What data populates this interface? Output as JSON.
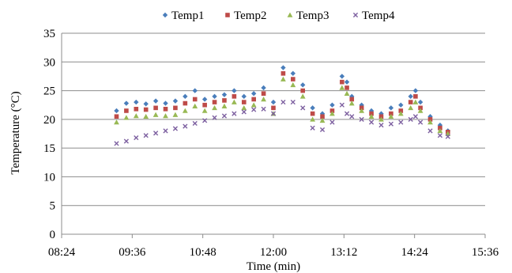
{
  "chart_data": {
    "type": "scatter",
    "xlabel": "Time (min)",
    "ylabel": "Temperature (°C)",
    "xlim": [
      "08:24",
      "15:36"
    ],
    "ylim": [
      0,
      35
    ],
    "xticks": [
      "08:24",
      "09:36",
      "10:48",
      "12:00",
      "13:12",
      "14:24",
      "15:36"
    ],
    "yticks": [
      0,
      5,
      10,
      15,
      20,
      25,
      30,
      35
    ],
    "grid": "horizontal",
    "legend_position": "top",
    "x": [
      "09:20",
      "09:30",
      "09:40",
      "09:50",
      "10:00",
      "10:10",
      "10:20",
      "10:30",
      "10:40",
      "10:50",
      "11:00",
      "11:10",
      "11:20",
      "11:30",
      "11:40",
      "11:50",
      "12:00",
      "12:10",
      "12:20",
      "12:30",
      "12:40",
      "12:50",
      "13:00",
      "13:10",
      "13:15",
      "13:20",
      "13:30",
      "13:40",
      "13:50",
      "14:00",
      "14:10",
      "14:20",
      "14:25",
      "14:30",
      "14:40",
      "14:50",
      "14:58"
    ],
    "series": [
      {
        "name": "Temp1",
        "color": "#4a7ebb",
        "marker": "diamond",
        "values": [
          21.5,
          22.8,
          23.0,
          22.7,
          23.2,
          22.8,
          23.2,
          24.0,
          25.0,
          23.5,
          24.0,
          24.3,
          25.0,
          24.0,
          24.5,
          25.5,
          23.0,
          29.0,
          28.0,
          26.0,
          22.0,
          21.0,
          22.5,
          27.5,
          26.5,
          24.0,
          22.5,
          21.5,
          21.0,
          22.0,
          22.5,
          24.0,
          25.0,
          23.0,
          20.5,
          19.0,
          18.0
        ]
      },
      {
        "name": "Temp2",
        "color": "#be4b48",
        "marker": "square",
        "values": [
          20.5,
          21.5,
          21.8,
          21.7,
          22.0,
          21.8,
          22.0,
          22.8,
          23.5,
          22.5,
          23.0,
          23.3,
          24.0,
          23.0,
          23.5,
          24.5,
          22.0,
          28.0,
          27.0,
          25.0,
          21.0,
          20.5,
          21.5,
          26.5,
          25.5,
          23.5,
          22.0,
          21.0,
          20.5,
          21.0,
          21.5,
          23.0,
          24.0,
          22.0,
          20.0,
          18.5,
          17.8
        ]
      },
      {
        "name": "Temp3",
        "color": "#98b954",
        "marker": "triangle",
        "values": [
          19.5,
          20.3,
          20.6,
          20.5,
          20.8,
          20.6,
          20.8,
          21.5,
          22.3,
          21.5,
          22.0,
          22.3,
          23.0,
          22.0,
          22.5,
          23.5,
          21.0,
          27.0,
          26.0,
          24.0,
          20.0,
          19.8,
          21.0,
          25.5,
          24.5,
          22.8,
          21.5,
          20.5,
          20.0,
          20.5,
          21.0,
          22.0,
          23.0,
          21.5,
          19.5,
          18.0,
          17.5
        ]
      },
      {
        "name": "Temp4",
        "color": "#7d60a0",
        "marker": "x",
        "values": [
          15.8,
          16.2,
          16.8,
          17.2,
          17.6,
          18.0,
          18.4,
          18.8,
          19.3,
          19.8,
          20.3,
          20.6,
          21.0,
          21.3,
          21.7,
          21.8,
          21.0,
          23.0,
          23.0,
          22.0,
          18.5,
          18.2,
          19.5,
          22.5,
          21.0,
          20.5,
          20.0,
          19.5,
          19.0,
          19.2,
          19.5,
          20.0,
          20.5,
          19.5,
          18.0,
          17.2,
          17.0
        ]
      }
    ]
  }
}
